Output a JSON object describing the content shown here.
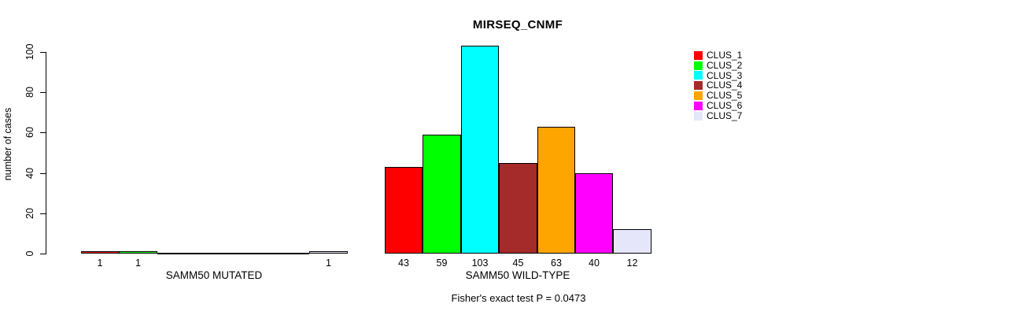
{
  "chart_data": {
    "type": "bar",
    "title": "MIRSEQ_CNMF",
    "xlabel": "",
    "ylabel": "number of cases",
    "ylim": [
      0,
      103
    ],
    "y_ticks": [
      0,
      20,
      40,
      60,
      80,
      100
    ],
    "grid": false,
    "categories": [
      "SAMM50 MUTATED",
      "SAMM50 WILD-TYPE"
    ],
    "series": [
      {
        "name": "CLUS_1",
        "color": "#FF0000",
        "values": [
          1,
          43
        ]
      },
      {
        "name": "CLUS_2",
        "color": "#00FF00",
        "values": [
          1,
          59
        ]
      },
      {
        "name": "CLUS_3",
        "color": "#00FFFF",
        "values": [
          0,
          103
        ]
      },
      {
        "name": "CLUS_4",
        "color": "#A52A2A",
        "values": [
          0,
          45
        ]
      },
      {
        "name": "CLUS_5",
        "color": "#FFA500",
        "values": [
          0,
          63
        ]
      },
      {
        "name": "CLUS_6",
        "color": "#FF00FF",
        "values": [
          0,
          40
        ]
      },
      {
        "name": "CLUS_7",
        "color": "#E6E6FA",
        "values": [
          1,
          12
        ]
      }
    ],
    "bar_labels": {
      "group_0": [
        "1",
        "1",
        "",
        "",
        "",
        "",
        "1"
      ],
      "group_1": [
        "43",
        "59",
        "103",
        "45",
        "63",
        "40",
        "12"
      ]
    },
    "legend": {
      "position": "top-right",
      "entries": [
        "CLUS_1",
        "CLUS_2",
        "CLUS_3",
        "CLUS_4",
        "CLUS_5",
        "CLUS_6",
        "CLUS_7"
      ]
    },
    "annotation": "Fisher's exact test P = 0.0473",
    "colors": {
      "background": "#FFFFFF",
      "axis": "#000000",
      "bar_border": "#000000",
      "text": "#000000"
    }
  }
}
